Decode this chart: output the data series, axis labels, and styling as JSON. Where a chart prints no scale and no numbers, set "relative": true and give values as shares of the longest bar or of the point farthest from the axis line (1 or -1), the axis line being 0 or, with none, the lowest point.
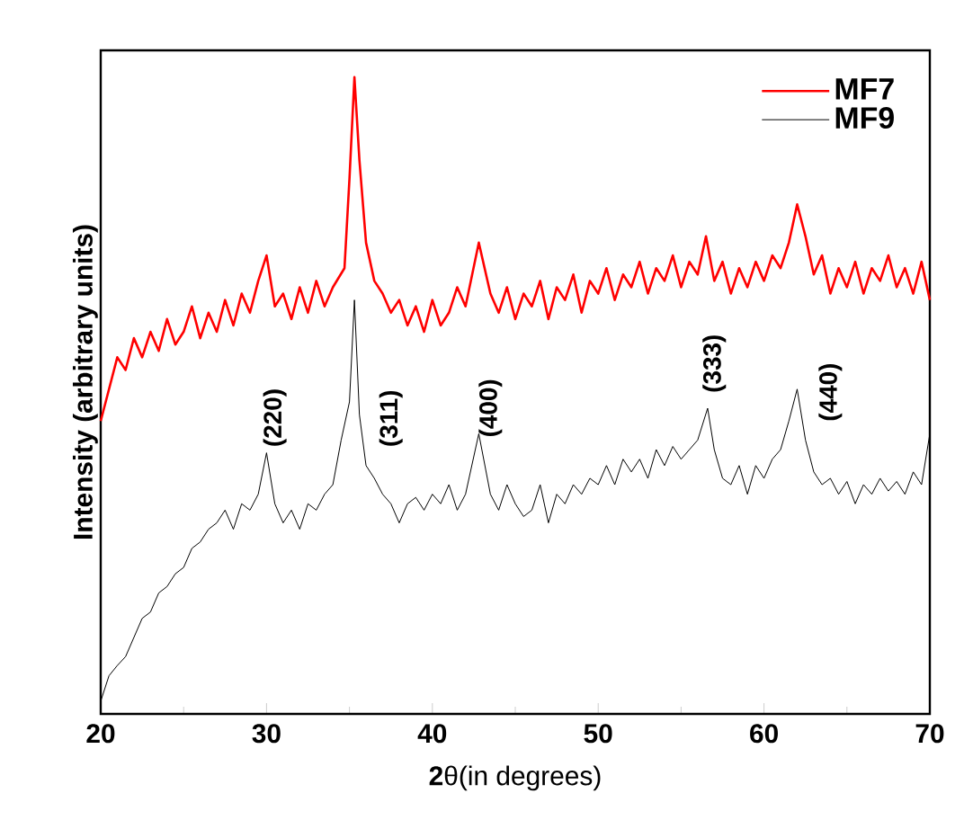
{
  "chart_data": {
    "type": "line",
    "relative": true,
    "xlabel": "**2**θ(in degrees)",
    "ylabel": "Intensity (arbitrary units)",
    "xlim": [
      20,
      70
    ],
    "xticks": [
      20,
      30,
      40,
      50,
      60,
      70
    ],
    "legend": "top right",
    "grid": false,
    "series": [
      {
        "name": "MF7",
        "color": "#ff0000",
        "x": [
          20,
          20.5,
          21,
          21.5,
          22,
          22.5,
          23,
          23.5,
          24,
          24.5,
          25,
          25.5,
          26,
          26.5,
          27,
          27.5,
          28,
          28.5,
          29,
          29.5,
          30,
          30.5,
          31,
          31.5,
          32,
          32.5,
          33,
          33.5,
          34,
          34.7,
          35.0,
          35.3,
          35.6,
          36,
          36.5,
          37,
          37.5,
          38,
          38.5,
          39,
          39.5,
          40,
          40.5,
          41,
          41.5,
          42,
          42.8,
          43.5,
          44,
          44.5,
          45,
          45.5,
          46,
          46.5,
          47,
          47.5,
          48,
          48.5,
          49,
          49.5,
          50,
          50.5,
          51,
          51.5,
          52,
          52.5,
          53,
          53.5,
          54,
          54.5,
          55,
          55.5,
          56,
          56.5,
          57,
          57.5,
          58,
          58.5,
          59,
          59.5,
          60,
          60.5,
          61,
          61.5,
          62,
          62.5,
          63,
          63.5,
          64,
          64.5,
          65,
          65.5,
          66,
          66.5,
          67,
          67.5,
          68,
          68.5,
          69,
          69.5,
          70
        ],
        "values": [
          0.46,
          0.51,
          0.56,
          0.54,
          0.59,
          0.56,
          0.6,
          0.57,
          0.62,
          0.58,
          0.6,
          0.64,
          0.59,
          0.63,
          0.6,
          0.65,
          0.61,
          0.66,
          0.63,
          0.68,
          0.72,
          0.64,
          0.66,
          0.62,
          0.67,
          0.63,
          0.68,
          0.64,
          0.67,
          0.7,
          0.84,
          1.0,
          0.87,
          0.74,
          0.68,
          0.66,
          0.63,
          0.65,
          0.61,
          0.64,
          0.6,
          0.65,
          0.61,
          0.63,
          0.67,
          0.64,
          0.74,
          0.66,
          0.63,
          0.67,
          0.62,
          0.66,
          0.64,
          0.68,
          0.62,
          0.67,
          0.65,
          0.69,
          0.63,
          0.68,
          0.66,
          0.7,
          0.65,
          0.69,
          0.67,
          0.71,
          0.66,
          0.7,
          0.68,
          0.72,
          0.67,
          0.71,
          0.69,
          0.75,
          0.68,
          0.71,
          0.66,
          0.7,
          0.67,
          0.71,
          0.68,
          0.72,
          0.7,
          0.74,
          0.8,
          0.75,
          0.69,
          0.72,
          0.66,
          0.7,
          0.67,
          0.71,
          0.66,
          0.7,
          0.68,
          0.72,
          0.67,
          0.7,
          0.66,
          0.71,
          0.65
        ]
      },
      {
        "name": "MF9",
        "color": "#000000",
        "x": [
          20,
          20.5,
          21,
          21.5,
          22,
          22.5,
          23,
          23.5,
          24,
          24.5,
          25,
          25.5,
          26,
          26.5,
          27,
          27.5,
          28,
          28.5,
          29,
          29.5,
          30,
          30.5,
          31,
          31.5,
          32,
          32.5,
          33,
          33.5,
          34,
          34.5,
          35.0,
          35.3,
          35.6,
          36,
          36.5,
          37,
          37.5,
          38,
          38.5,
          39,
          39.5,
          40,
          40.5,
          41,
          41.5,
          42,
          42.8,
          43.5,
          44,
          44.5,
          45,
          45.5,
          46,
          46.5,
          47,
          47.5,
          48,
          48.5,
          49,
          49.5,
          50,
          50.5,
          51,
          51.5,
          52,
          52.5,
          53,
          53.5,
          54,
          54.5,
          55,
          55.5,
          56,
          56.6,
          57,
          57.5,
          58,
          58.5,
          59,
          59.5,
          60,
          60.5,
          61,
          61.5,
          62,
          62.5,
          63,
          63.5,
          64,
          64.5,
          65,
          65.5,
          66,
          66.5,
          67,
          67.5,
          68,
          68.5,
          69,
          69.5,
          70
        ],
        "values": [
          0.02,
          0.06,
          0.076,
          0.09,
          0.12,
          0.15,
          0.16,
          0.19,
          0.2,
          0.22,
          0.23,
          0.26,
          0.27,
          0.29,
          0.3,
          0.32,
          0.29,
          0.33,
          0.32,
          0.345,
          0.41,
          0.33,
          0.3,
          0.32,
          0.29,
          0.33,
          0.32,
          0.345,
          0.36,
          0.43,
          0.49,
          0.65,
          0.47,
          0.39,
          0.37,
          0.345,
          0.33,
          0.3,
          0.33,
          0.34,
          0.32,
          0.345,
          0.33,
          0.36,
          0.32,
          0.345,
          0.44,
          0.345,
          0.32,
          0.36,
          0.33,
          0.31,
          0.32,
          0.36,
          0.3,
          0.345,
          0.33,
          0.36,
          0.345,
          0.37,
          0.36,
          0.39,
          0.36,
          0.4,
          0.38,
          0.4,
          0.37,
          0.415,
          0.39,
          0.42,
          0.4,
          0.415,
          0.43,
          0.48,
          0.415,
          0.37,
          0.36,
          0.39,
          0.345,
          0.39,
          0.37,
          0.4,
          0.415,
          0.46,
          0.51,
          0.43,
          0.38,
          0.36,
          0.37,
          0.345,
          0.365,
          0.33,
          0.36,
          0.345,
          0.37,
          0.35,
          0.365,
          0.345,
          0.38,
          0.36,
          0.44
        ]
      }
    ],
    "annotations": [
      {
        "text": "(220)",
        "x": 30.5,
        "y": 0.33
      },
      {
        "text": "(311)",
        "x": 37.5,
        "y": 0.33
      },
      {
        "text": "(400)",
        "x": 43.5,
        "y": 0.345
      },
      {
        "text": "(333)",
        "x": 57,
        "y": 0.415
      },
      {
        "text": "(440)",
        "x": 64,
        "y": 0.37
      }
    ]
  }
}
